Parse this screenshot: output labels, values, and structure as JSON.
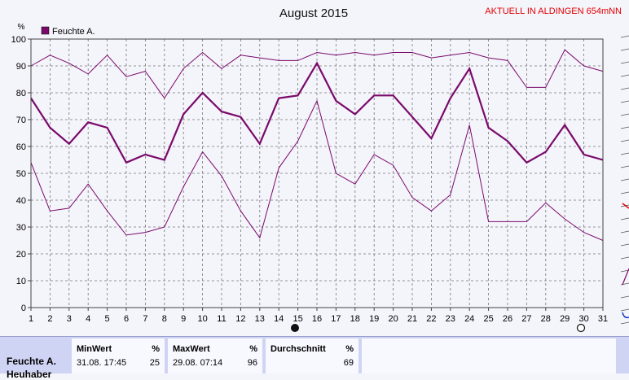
{
  "header": {
    "title": "August 2015",
    "station": "AKTUELL IN ALDINGEN 654mNN"
  },
  "colors": {
    "series": "#7a0a6a",
    "grid": "#777777",
    "station_text": "#e00000",
    "panel": "#d0d4f4"
  },
  "chart_data": {
    "type": "line",
    "title": "August 2015",
    "ylabel": "%",
    "ylim": [
      0,
      100
    ],
    "y_ticks": [
      "0",
      "10",
      "20",
      "30",
      "40",
      "50",
      "60",
      "70",
      "80",
      "90",
      "100"
    ],
    "x": [
      "1",
      "2",
      "3",
      "4",
      "5",
      "6",
      "7",
      "8",
      "9",
      "10",
      "11",
      "12",
      "13",
      "14",
      "15",
      "16",
      "17",
      "18",
      "19",
      "20",
      "21",
      "22",
      "23",
      "24",
      "25",
      "26",
      "27",
      "28",
      "29",
      "30",
      "31"
    ],
    "legend": "Feuchte A.",
    "legend_position": "top-left",
    "grid": true,
    "series": [
      {
        "role": "max",
        "values": [
          90,
          94,
          91,
          87,
          94,
          86,
          88,
          78,
          89,
          95,
          89,
          94,
          93,
          92,
          92,
          95,
          94,
          95,
          94,
          95,
          95,
          93,
          94,
          95,
          93,
          92,
          82,
          82,
          96,
          90,
          88
        ]
      },
      {
        "role": "mean",
        "values": [
          78,
          67,
          61,
          69,
          67,
          54,
          57,
          55,
          72,
          80,
          73,
          71,
          61,
          78,
          79,
          91,
          77,
          72,
          79,
          79,
          71,
          63,
          78,
          89,
          67,
          62,
          54,
          58,
          68,
          57,
          55
        ]
      },
      {
        "role": "min",
        "values": [
          54,
          36,
          37,
          46,
          36,
          27,
          28,
          30,
          45,
          58,
          49,
          36,
          26,
          52,
          62,
          77,
          50,
          46,
          57,
          53,
          41,
          36,
          42,
          68,
          32,
          32,
          32,
          39,
          33,
          28,
          25
        ]
      }
    ]
  },
  "stats": {
    "series_name": "Feuchte A.",
    "series_name2": "Heuhaber",
    "min": {
      "header": "MinWert",
      "unit": "%",
      "time": "31.08.  17:45",
      "value": "25"
    },
    "max": {
      "header": "MaxWert",
      "unit": "%",
      "time": "29.08.  07:14",
      "value": "96"
    },
    "avg": {
      "header": "Durchschnitt",
      "unit": "%",
      "value": "69"
    }
  }
}
